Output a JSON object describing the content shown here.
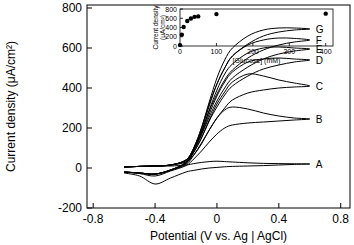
{
  "chart_data": [
    {
      "type": "line",
      "x_label": "Potential (V vs. Ag | AgCl)",
      "y_label": "Current density (μA/cm²)",
      "x": [
        -0.6,
        -0.5,
        -0.4,
        -0.3,
        -0.2,
        -0.15,
        -0.1,
        -0.05,
        0,
        0.05,
        0.1,
        0.2,
        0.3,
        0.4,
        0.5,
        0.6,
        0.5,
        0.4,
        0.3,
        0.2,
        0.1,
        0.05,
        0,
        -0.05,
        -0.1,
        -0.15,
        -0.2,
        -0.3,
        -0.4,
        -0.5,
        -0.6
      ],
      "series": [
        {
          "name": "A",
          "color": "#000000",
          "values": [
            5,
            8,
            10,
            10,
            15,
            22,
            28,
            32,
            34,
            32,
            30,
            26,
            23,
            22,
            21,
            20,
            18,
            15,
            12,
            10,
            8,
            6,
            3,
            0,
            -5,
            -12,
            -20,
            -50,
            -80,
            -40,
            -25
          ]
        },
        {
          "name": "B",
          "color": "#000000",
          "values": [
            5,
            8,
            10,
            14,
            30,
            65,
            120,
            190,
            250,
            290,
            305,
            295,
            275,
            260,
            250,
            245,
            240,
            235,
            230,
            225,
            215,
            200,
            170,
            130,
            85,
            45,
            12,
            -15,
            -40,
            -28,
            -20
          ]
        },
        {
          "name": "C",
          "color": "#000000",
          "values": [
            5,
            8,
            10,
            15,
            35,
            80,
            150,
            240,
            320,
            380,
            430,
            470,
            460,
            440,
            425,
            410,
            405,
            400,
            390,
            375,
            340,
            300,
            250,
            190,
            125,
            65,
            18,
            -12,
            -32,
            -25,
            -20
          ]
        },
        {
          "name": "D",
          "color": "#000000",
          "values": [
            5,
            8,
            10,
            15,
            38,
            90,
            170,
            270,
            360,
            430,
            480,
            530,
            545,
            550,
            545,
            540,
            530,
            515,
            495,
            460,
            410,
            365,
            305,
            235,
            150,
            78,
            22,
            -10,
            -30,
            -25,
            -20
          ]
        },
        {
          "name": "E",
          "color": "#000000",
          "values": [
            5,
            8,
            10,
            15,
            40,
            95,
            180,
            290,
            390,
            470,
            520,
            575,
            600,
            605,
            600,
            595,
            585,
            570,
            545,
            505,
            450,
            400,
            335,
            255,
            165,
            85,
            25,
            -10,
            -30,
            -25,
            -20
          ]
        },
        {
          "name": "F",
          "color": "#000000",
          "values": [
            5,
            8,
            10,
            15,
            40,
            100,
            190,
            310,
            420,
            500,
            560,
            615,
            640,
            650,
            648,
            640,
            630,
            615,
            590,
            550,
            490,
            440,
            370,
            285,
            180,
            90,
            28,
            -10,
            -30,
            -25,
            -20
          ]
        },
        {
          "name": "G",
          "color": "#000000",
          "values": [
            5,
            8,
            10,
            15,
            40,
            100,
            200,
            330,
            450,
            540,
            600,
            660,
            690,
            700,
            700,
            695,
            690,
            680,
            660,
            620,
            560,
            500,
            420,
            320,
            200,
            100,
            30,
            -10,
            -30,
            -25,
            -20
          ]
        }
      ],
      "xlim": [
        -0.84,
        0.86
      ],
      "ylim": [
        -200,
        815
      ],
      "xticks": [
        -0.8,
        -0.4,
        0,
        0.4,
        0.8
      ],
      "yticks": [
        -200,
        0,
        200,
        400,
        600,
        800
      ]
    },
    {
      "type": "scatter",
      "x_label": "[Glucose] (mM)",
      "y_label": "Current density (μA/cm²)",
      "x": [
        0,
        5,
        10,
        20,
        30,
        40,
        50,
        100,
        400
      ],
      "values": [
        20,
        245,
        410,
        540,
        595,
        630,
        640,
        690,
        700
      ],
      "color": "#000000",
      "marker": "circle",
      "xlim": [
        0,
        420
      ],
      "ylim": [
        0,
        800
      ],
      "xticks": [
        0,
        100,
        200,
        300,
        400
      ],
      "yticks": [
        0,
        200,
        400,
        600,
        800
      ]
    }
  ]
}
